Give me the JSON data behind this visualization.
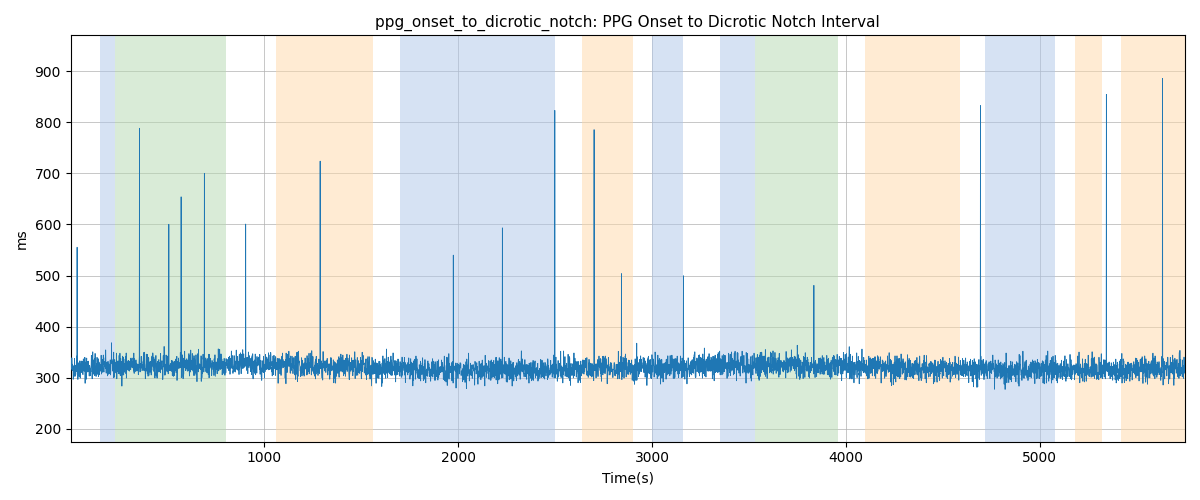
{
  "title": "ppg_onset_to_dicrotic_notch: PPG Onset to Dicrotic Notch Interval",
  "xlabel": "Time(s)",
  "ylabel": "ms",
  "xlim": [
    0,
    5750
  ],
  "ylim": [
    175,
    970
  ],
  "figsize": [
    12.0,
    5.0
  ],
  "dpi": 100,
  "line_color": "#1f77b4",
  "line_width": 0.6,
  "background_color": "#ffffff",
  "grid_color": "#b0b0b0",
  "bands": [
    {
      "xmin": 150,
      "xmax": 230,
      "color": "#aec6e8",
      "alpha": 0.5
    },
    {
      "xmin": 230,
      "xmax": 800,
      "color": "#b5d9b0",
      "alpha": 0.5
    },
    {
      "xmin": 1060,
      "xmax": 1560,
      "color": "#ffd9a8",
      "alpha": 0.5
    },
    {
      "xmin": 1700,
      "xmax": 2500,
      "color": "#aec6e8",
      "alpha": 0.5
    },
    {
      "xmin": 2640,
      "xmax": 2900,
      "color": "#ffd9a8",
      "alpha": 0.5
    },
    {
      "xmin": 3000,
      "xmax": 3160,
      "color": "#aec6e8",
      "alpha": 0.5
    },
    {
      "xmin": 3350,
      "xmax": 3430,
      "color": "#aec6e8",
      "alpha": 0.5
    },
    {
      "xmin": 3430,
      "xmax": 3530,
      "color": "#aec6e8",
      "alpha": 0.5
    },
    {
      "xmin": 3530,
      "xmax": 3960,
      "color": "#b5d9b0",
      "alpha": 0.5
    },
    {
      "xmin": 4100,
      "xmax": 4590,
      "color": "#ffd9a8",
      "alpha": 0.5
    },
    {
      "xmin": 4720,
      "xmax": 5080,
      "color": "#aec6e8",
      "alpha": 0.5
    },
    {
      "xmin": 5180,
      "xmax": 5320,
      "color": "#ffd9a8",
      "alpha": 0.5
    },
    {
      "xmin": 5420,
      "xmax": 5750,
      "color": "#ffd9a8",
      "alpha": 0.5
    }
  ],
  "seed": 42,
  "n_points": 5700,
  "xticks": [
    1000,
    2000,
    3000,
    4000,
    5000
  ],
  "yticks": [
    200,
    300,
    400,
    500,
    600,
    700,
    800,
    900
  ]
}
